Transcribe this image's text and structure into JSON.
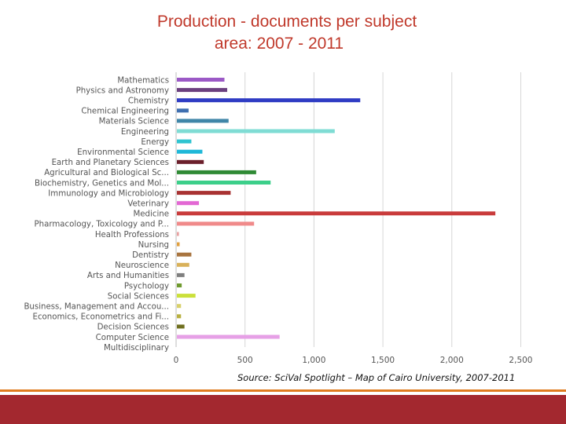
{
  "slide": {
    "title_line1": "Production - documents per subject",
    "title_line2": "area: 2007 - 2011",
    "source": "Source: SciVal Spotlight – Map of Cairo University, 2007-2011",
    "accent_color": "#e07b1f",
    "footer_color": "#a3282f"
  },
  "chart_data": {
    "type": "bar",
    "orientation": "horizontal",
    "title": "",
    "xlabel": "",
    "ylabel": "",
    "xlim": [
      0,
      2600
    ],
    "x_ticks": [
      0,
      500,
      1000,
      1500,
      2000,
      2500
    ],
    "x_tick_labels": [
      "0",
      "500",
      "1,000",
      "1,500",
      "2,000",
      "2,500"
    ],
    "grid": true,
    "categories": [
      "Mathematics",
      "Physics and Astronomy",
      "Chemistry",
      "Chemical Engineering",
      "Materials Science",
      "Engineering",
      "Energy",
      "Environmental Science",
      "Earth and Planetary Sciences",
      "Agricultural and Biological Sc...",
      "Biochemistry, Genetics and Mol...",
      "Immunology and Microbiology",
      "Veterinary",
      "Medicine",
      "Pharmacology, Toxicology and P...",
      "Health Professions",
      "Nursing",
      "Dentistry",
      "Neuroscience",
      "Arts and Humanities",
      "Psychology",
      "Social Sciences",
      "Business, Management and Accou...",
      "Economics, Econometrics and Fi...",
      "Decision Sciences",
      "Computer Science",
      "Multidisciplinary"
    ],
    "values": [
      345,
      365,
      1330,
      85,
      375,
      1145,
      105,
      185,
      195,
      575,
      680,
      390,
      160,
      2310,
      560,
      15,
      20,
      105,
      90,
      55,
      35,
      135,
      30,
      30,
      55,
      745,
      0
    ],
    "colors": [
      "#9b59c6",
      "#6b3f7f",
      "#2f3cc4",
      "#3f6fb0",
      "#3f86a8",
      "#7fdcd4",
      "#2ec4d0",
      "#1fb8d8",
      "#6b1f2b",
      "#2f8a35",
      "#3ccf8a",
      "#a83232",
      "#e368d4",
      "#c93b3b",
      "#f08a8a",
      "#e8a0a0",
      "#e0a040",
      "#a8743f",
      "#d9b15a",
      "#7f7f7f",
      "#6f9a2f",
      "#cbe03a",
      "#d8d06a",
      "#b8b040",
      "#6f6f1f",
      "#e6a0e6",
      "#cccccc"
    ]
  }
}
